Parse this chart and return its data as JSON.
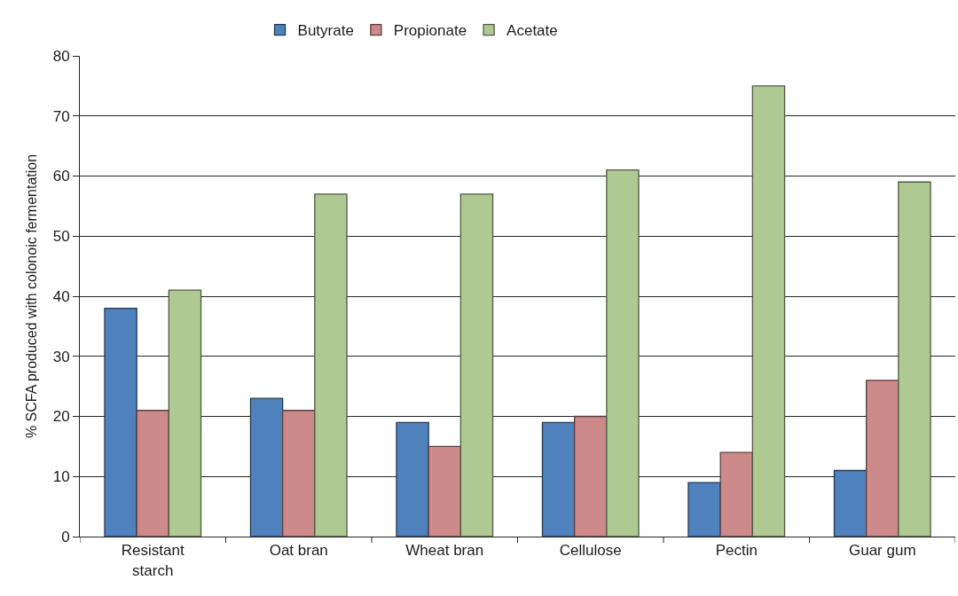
{
  "chart_data": {
    "type": "bar",
    "ylabel": "% SCFA produced with colonoic fermentation",
    "categories": [
      "Resistant starch",
      "Oat bran",
      "Wheat bran",
      "Cellulose",
      "Pectin",
      "Guar gum"
    ],
    "series": [
      {
        "name": "Butyrate",
        "color": "#4f81bd",
        "values": [
          38,
          23,
          19,
          19,
          9,
          11
        ]
      },
      {
        "name": "Propionate",
        "color": "#cd8a8a",
        "values": [
          21,
          21,
          15,
          20,
          14,
          26
        ]
      },
      {
        "name": "Acetate",
        "color": "#afc993",
        "values": [
          41,
          57,
          57,
          61,
          75,
          59
        ]
      }
    ],
    "ylim": [
      0,
      80
    ],
    "yticks": [
      0,
      10,
      20,
      30,
      40,
      50,
      60,
      70,
      80
    ],
    "grid": "y",
    "legend": "top"
  }
}
